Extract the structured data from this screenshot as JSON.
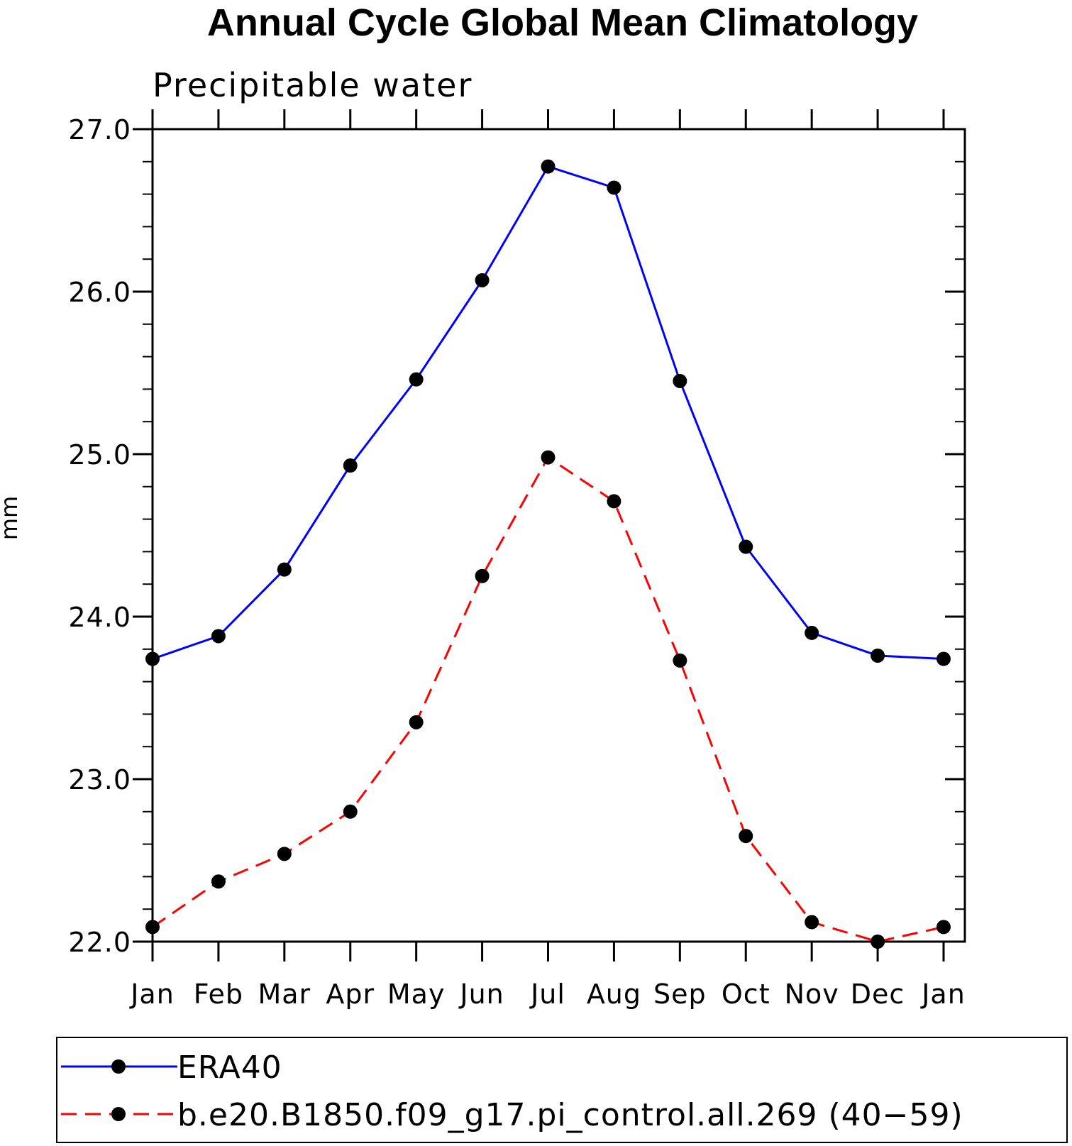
{
  "chart_data": {
    "type": "line",
    "title": "Annual Cycle Global Mean Climatology",
    "subtitle": "Precipitable water",
    "xlabel": "",
    "ylabel": "mm",
    "categories": [
      "Jan",
      "Feb",
      "Mar",
      "Apr",
      "May",
      "Jun",
      "Jul",
      "Aug",
      "Sep",
      "Oct",
      "Nov",
      "Dec",
      "Jan"
    ],
    "ylim": [
      22.0,
      27.0
    ],
    "yticks": [
      "22.0",
      "23.0",
      "24.0",
      "25.0",
      "26.0",
      "27.0"
    ],
    "series": [
      {
        "name": "ERA40",
        "color": "#0000ff",
        "dash": "solid",
        "values": [
          23.74,
          23.88,
          24.29,
          24.93,
          25.46,
          26.07,
          26.77,
          26.64,
          25.45,
          24.43,
          23.9,
          23.76,
          23.74
        ]
      },
      {
        "name": "b.e20.B1850.f09_g17.pi_control.all.269 (40−59)",
        "color": "#ff0000",
        "dash": "dashed",
        "values": [
          22.09,
          22.37,
          22.54,
          22.8,
          23.35,
          24.25,
          24.98,
          24.71,
          23.73,
          22.65,
          22.12,
          22.0,
          22.09
        ]
      }
    ],
    "grid": false,
    "legend_position": "bottom"
  }
}
